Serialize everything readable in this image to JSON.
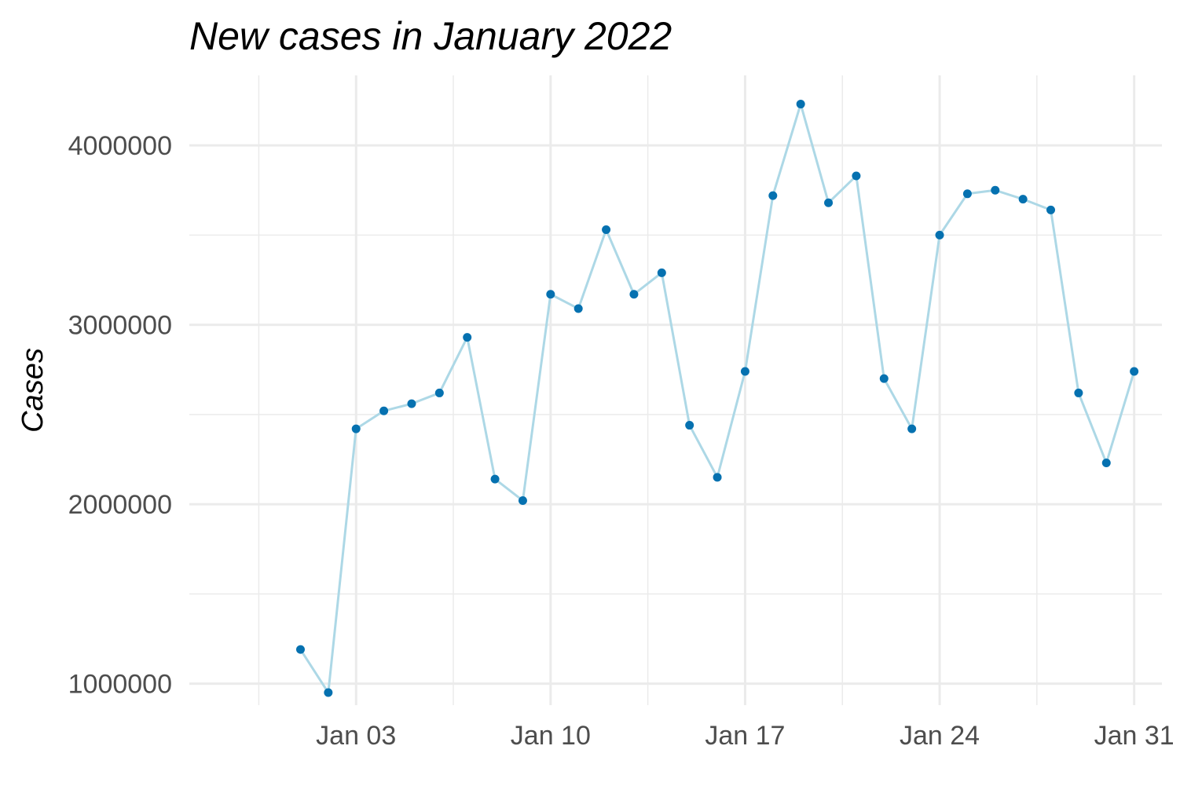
{
  "chart_data": {
    "type": "line",
    "title": "New cases in January 2022",
    "xlabel": "",
    "ylabel": "Cases",
    "grid": true,
    "legend": "none",
    "line_color": "#add8e6",
    "point_color": "#0571b0",
    "x": [
      "2022-01-01",
      "2022-01-02",
      "2022-01-03",
      "2022-01-04",
      "2022-01-05",
      "2022-01-06",
      "2022-01-07",
      "2022-01-08",
      "2022-01-09",
      "2022-01-10",
      "2022-01-11",
      "2022-01-12",
      "2022-01-13",
      "2022-01-14",
      "2022-01-15",
      "2022-01-16",
      "2022-01-17",
      "2022-01-18",
      "2022-01-19",
      "2022-01-20",
      "2022-01-21",
      "2022-01-22",
      "2022-01-23",
      "2022-01-24",
      "2022-01-25",
      "2022-01-26",
      "2022-01-27",
      "2022-01-28",
      "2022-01-29",
      "2022-01-30",
      "2022-01-31"
    ],
    "series": [
      {
        "values": [
          1190000,
          950000,
          2420000,
          2520000,
          2560000,
          2620000,
          2930000,
          2140000,
          2020000,
          3170000,
          3090000,
          3530000,
          3170000,
          3290000,
          2440000,
          2150000,
          2740000,
          3720000,
          4230000,
          3680000,
          3830000,
          2700000,
          2420000,
          3500000,
          3730000,
          3750000,
          3700000,
          3640000,
          2620000,
          2230000,
          2740000
        ]
      }
    ],
    "ylim": [
      880000,
      4390000
    ],
    "xlim": [
      "2021-12-28",
      "2022-02-01"
    ],
    "y_ticks": [
      1000000,
      2000000,
      3000000,
      4000000
    ],
    "y_tick_labels": [
      "1000000",
      "2000000",
      "3000000",
      "4000000"
    ],
    "x_ticks": [
      "2022-01-03",
      "2022-01-10",
      "2022-01-17",
      "2022-01-24",
      "2022-01-31"
    ],
    "x_tick_labels": [
      "Jan 03",
      "Jan 10",
      "Jan 17",
      "Jan 24",
      "Jan 31"
    ]
  }
}
